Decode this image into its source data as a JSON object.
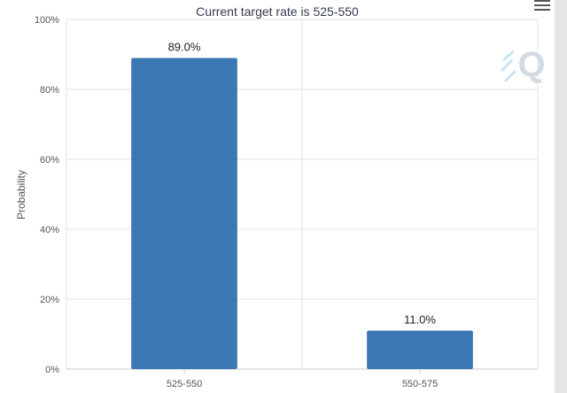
{
  "chart_data": {
    "type": "bar",
    "subtitle": "Current target rate is 525-550",
    "categories": [
      "525-550",
      "550-575"
    ],
    "values": [
      89.0,
      11.0
    ],
    "data_labels": [
      "89.0%",
      "11.0%"
    ],
    "ylabel": "Probability",
    "ylim": [
      0,
      100
    ],
    "y_ticks": [
      0,
      20,
      40,
      60,
      80,
      100
    ],
    "y_tick_labels": [
      "0%",
      "20%",
      "40%",
      "60%",
      "80%",
      "100%"
    ],
    "bar_color": "#3c78b4",
    "grid": true
  },
  "icons": {
    "menu": "hamburger-menu-icon",
    "watermark": "q-logo-watermark"
  }
}
